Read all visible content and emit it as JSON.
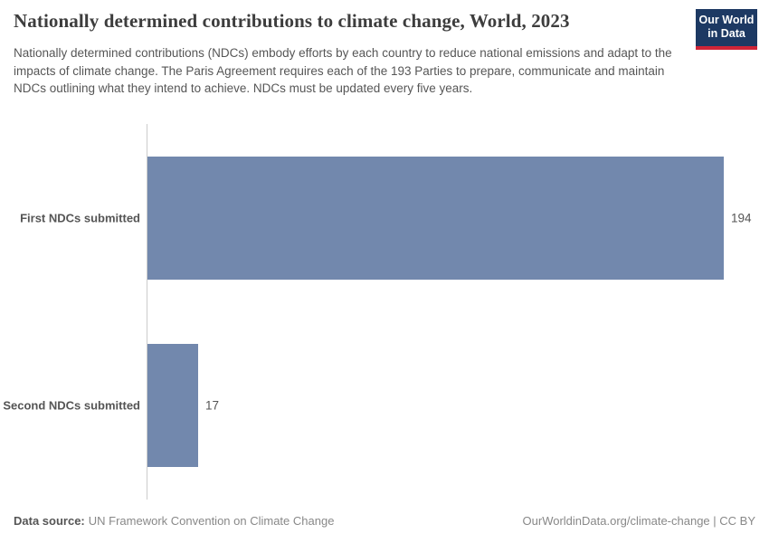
{
  "header": {
    "title": "Nationally determined contributions to climate change, World, 2023",
    "subtitle": "Nationally determined contributions (NDCs) embody efforts by each country to reduce national emissions and adapt to the impacts of climate change. The Paris Agreement requires each of the 193 Parties to prepare, communicate and maintain NDCs outlining what they intend to achieve. NDCs must be updated every five years.",
    "logo": {
      "line1": "Our World",
      "line2": "in Data",
      "bg_color": "#1d3963",
      "accent_color": "#cf2437"
    }
  },
  "chart_data": {
    "type": "bar",
    "orientation": "horizontal",
    "title": "Nationally determined contributions to climate change, World, 2023",
    "categories": [
      "First NDCs submitted",
      "Second NDCs submitted"
    ],
    "values": [
      194,
      17
    ],
    "value_labels": [
      "194",
      "17"
    ],
    "xlim": [
      0,
      194
    ],
    "grid": false,
    "legend": "none",
    "bar_color": "#7288ad",
    "axis_color": "#cccccc"
  },
  "footer": {
    "datasource_label": "Data source:",
    "datasource_value": "UN Framework Convention on Climate Change",
    "credit": "OurWorldinData.org/climate-change | CC BY"
  }
}
